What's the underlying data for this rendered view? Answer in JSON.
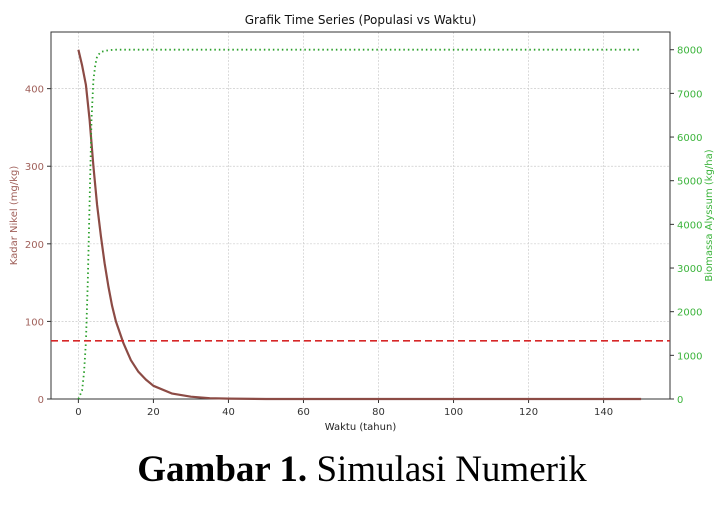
{
  "chart_data": {
    "type": "line",
    "title": "Grafik Time Series (Populasi vs Waktu)",
    "xlabel": "Waktu (tahun)",
    "ylabel": "Kadar Nikel (mg/kg)",
    "y2label": "Biomassa Alyssum (kg/ha)",
    "xlim": [
      -7.3,
      157.7
    ],
    "ylim": [
      0,
      473
    ],
    "y2lim": [
      0,
      8406
    ],
    "xticks": [
      0,
      20,
      40,
      60,
      80,
      100,
      120,
      140
    ],
    "yticks": [
      0,
      100,
      200,
      300,
      400
    ],
    "y2ticks": [
      0,
      1000,
      2000,
      3000,
      4000,
      5000,
      6000,
      7000,
      8000
    ],
    "grid": true,
    "series": [
      {
        "axis": "left",
        "style": "solid",
        "color": "#8c4b45",
        "x": [
          0,
          1,
          2,
          3,
          4,
          5,
          6,
          7,
          8,
          9,
          10,
          12,
          14,
          16,
          18,
          20,
          25,
          30,
          35,
          40,
          50,
          150
        ],
        "y": [
          450,
          430,
          405,
          360,
          300,
          250,
          210,
          175,
          145,
          120,
          100,
          72,
          50,
          35,
          25,
          17,
          7,
          3,
          1,
          0.5,
          0,
          0
        ]
      },
      {
        "axis": "right",
        "style": "dotted",
        "color": "#2ca02c",
        "x": [
          0,
          1,
          1.5,
          2,
          2.5,
          3,
          3.5,
          4,
          4.5,
          5,
          6,
          8,
          10,
          20,
          150
        ],
        "y": [
          0,
          200,
          600,
          1300,
          2700,
          4500,
          6400,
          7300,
          7650,
          7850,
          7950,
          7990,
          8000,
          8000,
          8000
        ]
      },
      {
        "axis": "left",
        "style": "dashed",
        "color": "#d62728",
        "type": "hline",
        "y": 75
      }
    ]
  },
  "caption": {
    "bold": "Gambar 1.",
    "text": " Simulasi Numerik"
  }
}
